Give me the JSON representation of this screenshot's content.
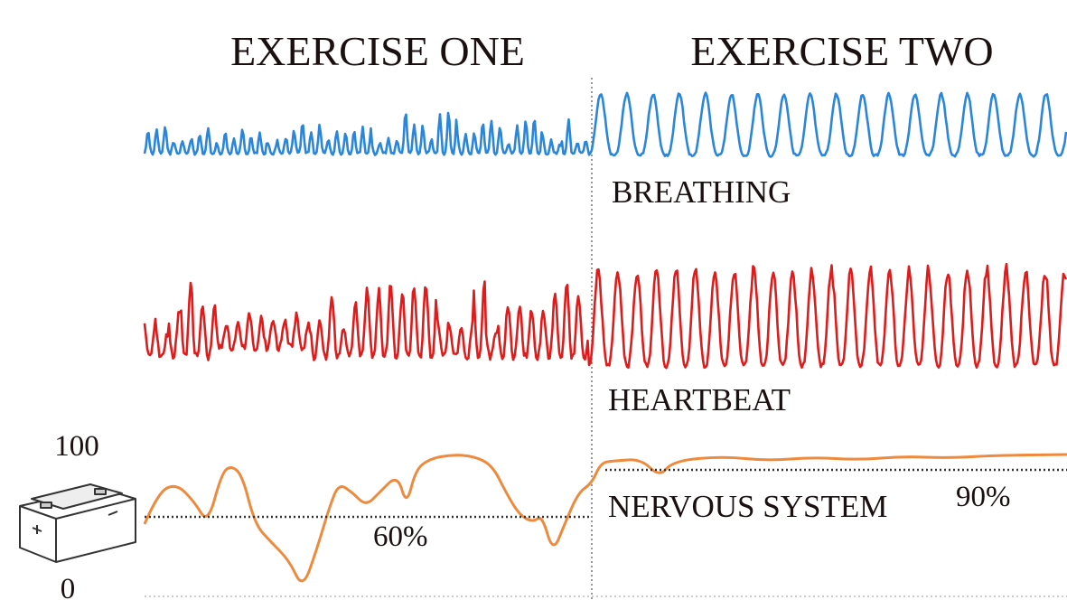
{
  "header": {
    "left_title": "EXERCISE ONE",
    "right_title": "EXERCISE TWO"
  },
  "signals": {
    "breathing": "BREATHING",
    "heartbeat": "HEARTBEAT",
    "nervous_system": "NERVOUS SYSTEM"
  },
  "scale": {
    "top": "100",
    "bottom": "0"
  },
  "levels": {
    "exercise_one": "60%",
    "exercise_two": "90%"
  }
}
